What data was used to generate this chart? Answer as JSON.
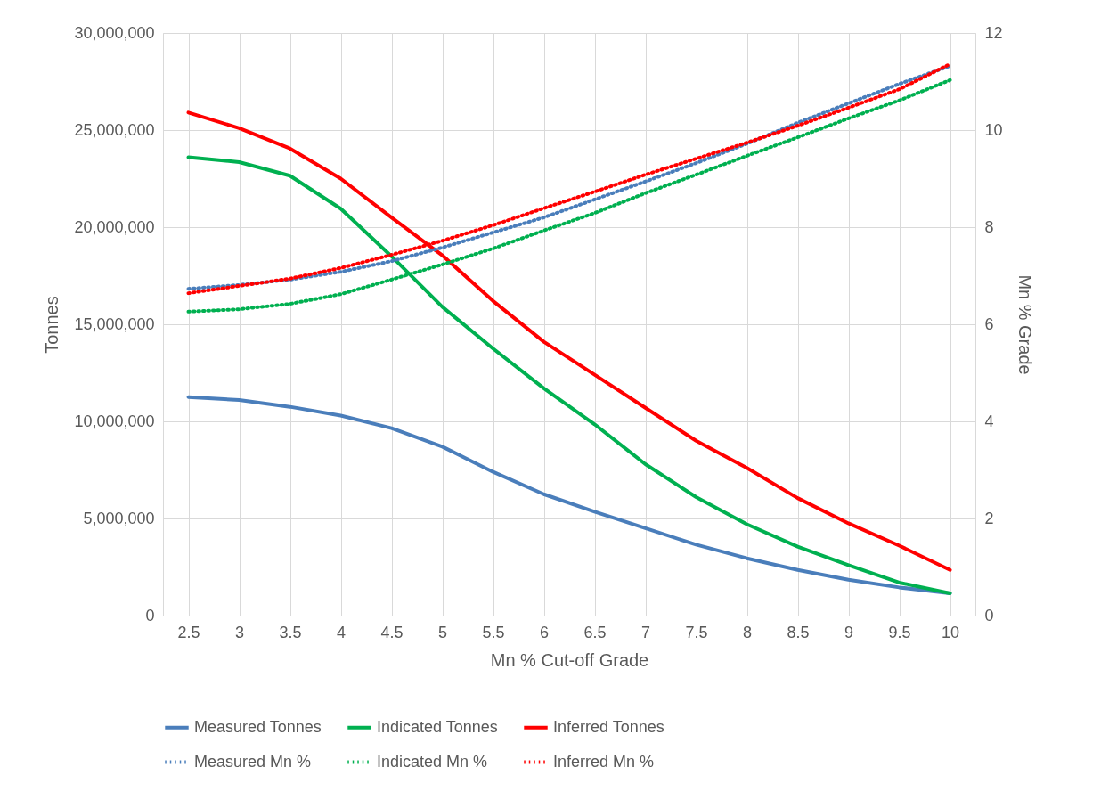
{
  "chart_data": {
    "type": "line",
    "xlabel": "Mn % Cut-off Grade",
    "ylabel": "Tonnes",
    "y2label": "Mn % Grade",
    "categories": [
      "2.5",
      "3",
      "3.5",
      "4",
      "4.5",
      "5",
      "5.5",
      "6",
      "6.5",
      "7",
      "7.5",
      "8",
      "8.5",
      "9",
      "9.5",
      "10"
    ],
    "series": [
      {
        "name": "Measured Tonnes",
        "color": "#4a7ebb",
        "line_style": "solid",
        "values": [
          11250000,
          11100000,
          10750000,
          10300000,
          9650000,
          8700000,
          7400000,
          6250000,
          5350000,
          4500000,
          3650000,
          2950000,
          2350000,
          1850000,
          1450000,
          1150000
        ]
      },
      {
        "name": "Indicated Tonnes",
        "color": "#00b050",
        "line_style": "solid",
        "values": [
          23600000,
          23350000,
          22650000,
          20950000,
          18500000,
          15900000,
          13750000,
          11700000,
          9850000,
          7800000,
          6100000,
          4700000,
          3550000,
          2600000,
          1700000,
          1150000
        ]
      },
      {
        "name": "Inferred Tonnes",
        "color": "#ff0000",
        "line_style": "solid",
        "values": [
          25900000,
          25100000,
          24050000,
          22500000,
          20500000,
          18550000,
          16200000,
          14100000,
          12400000,
          10700000,
          9000000,
          7600000,
          6050000,
          4750000,
          3600000,
          2350000
        ]
      },
      {
        "name": "Measured Mn %",
        "color": "#4a7ebb",
        "line_style": "dotted",
        "axis": "y2",
        "values": [
          6.73,
          6.81,
          6.92,
          7.08,
          7.3,
          7.58,
          7.89,
          8.2,
          8.57,
          8.94,
          9.32,
          9.72,
          10.15,
          10.55,
          10.95,
          11.32
        ]
      },
      {
        "name": "Indicated Mn %",
        "color": "#00b050",
        "line_style": "dotted",
        "axis": "y2",
        "values": [
          6.26,
          6.31,
          6.42,
          6.62,
          6.92,
          7.23,
          7.56,
          7.93,
          8.29,
          8.7,
          9.08,
          9.47,
          9.85,
          10.24,
          10.61,
          11.03
        ]
      },
      {
        "name": "Inferred Mn %",
        "color": "#ff0000",
        "line_style": "dotted",
        "axis": "y2",
        "values": [
          6.64,
          6.79,
          6.94,
          7.16,
          7.43,
          7.72,
          8.04,
          8.39,
          8.73,
          9.08,
          9.41,
          9.74,
          10.09,
          10.46,
          10.84,
          11.36
        ]
      }
    ],
    "ylim": [
      0,
      30000000
    ],
    "yticks": [
      {
        "value": 0,
        "label": "0"
      },
      {
        "value": 5000000,
        "label": "5,000,000"
      },
      {
        "value": 10000000,
        "label": "10,000,000"
      },
      {
        "value": 15000000,
        "label": "15,000,000"
      },
      {
        "value": 20000000,
        "label": "20,000,000"
      },
      {
        "value": 25000000,
        "label": "25,000,000"
      },
      {
        "value": 30000000,
        "label": "30,000,000"
      }
    ],
    "y2lim": [
      0,
      12
    ],
    "y2ticks": [
      0,
      2,
      4,
      6,
      8,
      10,
      12
    ],
    "grid": true,
    "legend": "bottom",
    "marker": "none"
  }
}
